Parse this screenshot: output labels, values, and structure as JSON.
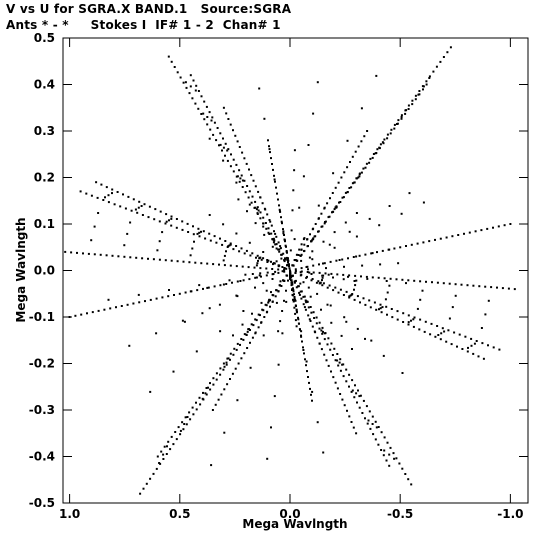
{
  "header": {
    "line1": "V vs U for SGRA.X BAND.1   Source:SGRA",
    "line2": "Ants * - *     Stokes I  IF# 1 - 2  Chan# 1"
  },
  "chart_data": {
    "type": "scatter",
    "title": "V vs U for SGRA.X BAND.1   Source:SGRA",
    "subtitle": "Ants * - *     Stokes I  IF# 1 - 2  Chan# 1",
    "xlabel": "Mega Wavlngth",
    "ylabel": "Mega Wavlngth",
    "xlim": [
      1.03,
      -1.08
    ],
    "ylim": [
      -0.5,
      0.5
    ],
    "x_reversed": true,
    "x_ticks": [
      1.0,
      0.5,
      0.0,
      -0.5,
      -1.0
    ],
    "x_tick_labels": [
      "1.0",
      "0.5",
      "0.0",
      "-0.5",
      "-1.0"
    ],
    "y_ticks": [
      0.5,
      0.4,
      0.3,
      0.2,
      0.1,
      0.0,
      -0.1,
      -0.2,
      -0.3,
      -0.4,
      -0.5
    ],
    "y_tick_labels": [
      "0.5",
      "0.4",
      "0.3",
      "0.2",
      "0.1",
      "0.0",
      "-0.1",
      "-0.2",
      "-0.3",
      "-0.4",
      "-0.5"
    ],
    "grid": false,
    "marker_color": "#000000",
    "tracks": [
      {
        "from": [
          0.0,
          0.0
        ],
        "to": [
          0.55,
          0.46
        ]
      },
      {
        "from": [
          0.0,
          0.0
        ],
        "to": [
          0.45,
          0.42
        ]
      },
      {
        "from": [
          0.0,
          0.0
        ],
        "to": [
          -0.73,
          0.48
        ]
      },
      {
        "from": [
          0.0,
          0.0
        ],
        "to": [
          -0.62,
          0.4
        ]
      },
      {
        "from": [
          0.0,
          0.0
        ],
        "to": [
          -0.55,
          -0.46
        ]
      },
      {
        "from": [
          0.0,
          0.0
        ],
        "to": [
          -0.45,
          -0.42
        ]
      },
      {
        "from": [
          0.0,
          0.0
        ],
        "to": [
          0.68,
          -0.48
        ]
      },
      {
        "from": [
          0.0,
          0.0
        ],
        "to": [
          0.6,
          -0.4
        ]
      },
      {
        "from": [
          0.0,
          0.0
        ],
        "to": [
          1.02,
          0.04
        ]
      },
      {
        "from": [
          0.0,
          0.0
        ],
        "to": [
          0.95,
          0.17
        ]
      },
      {
        "from": [
          0.0,
          0.0
        ],
        "to": [
          0.88,
          0.19
        ]
      },
      {
        "from": [
          0.0,
          0.0
        ],
        "to": [
          -1.02,
          -0.04
        ]
      },
      {
        "from": [
          0.0,
          0.0
        ],
        "to": [
          -0.95,
          -0.17
        ]
      },
      {
        "from": [
          0.0,
          0.0
        ],
        "to": [
          -0.88,
          -0.19
        ]
      },
      {
        "from": [
          0.0,
          0.0
        ],
        "to": [
          1.0,
          -0.1
        ]
      },
      {
        "from": [
          0.0,
          0.0
        ],
        "to": [
          -1.0,
          0.1
        ]
      },
      {
        "from": [
          0.0,
          0.0
        ],
        "to": [
          0.3,
          0.35
        ]
      },
      {
        "from": [
          0.0,
          0.0
        ],
        "to": [
          -0.3,
          -0.35
        ]
      },
      {
        "from": [
          0.0,
          0.0
        ],
        "to": [
          -0.35,
          0.3
        ]
      },
      {
        "from": [
          0.0,
          0.0
        ],
        "to": [
          0.35,
          -0.3
        ]
      },
      {
        "from": [
          0.0,
          0.0
        ],
        "to": [
          0.1,
          0.28
        ]
      },
      {
        "from": [
          0.0,
          0.0
        ],
        "to": [
          -0.1,
          -0.28
        ]
      },
      {
        "from": [
          0.0,
          0.0
        ],
        "to": [
          0.03,
          0.08
        ]
      },
      {
        "from": [
          0.0,
          0.0
        ],
        "to": [
          -0.03,
          -0.12
        ]
      }
    ]
  }
}
